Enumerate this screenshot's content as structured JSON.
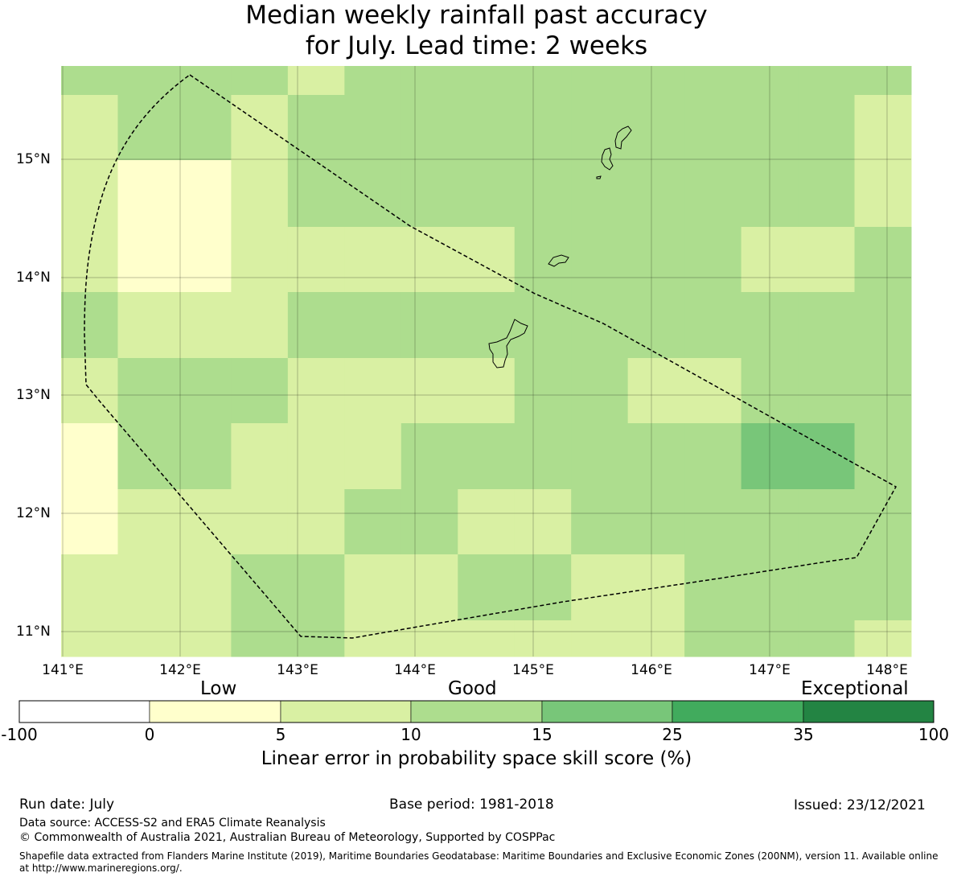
{
  "title": {
    "line1": "Median weekly rainfall past accuracy",
    "line2": "for July. Lead time: 2 weeks"
  },
  "map": {
    "lon_labels": [
      "141°E",
      "142°E",
      "143°E",
      "144°E",
      "145°E",
      "146°E",
      "147°E",
      "148°E"
    ],
    "lat_labels": [
      "15°N",
      "14°N",
      "13°N",
      "12°N",
      "11°N"
    ],
    "grid_category_rows_top_to_bottom": [
      [
        2,
        2,
        2,
        2,
        1,
        2,
        2,
        2,
        2,
        2,
        2,
        2,
        2,
        2,
        2
      ],
      [
        1,
        2,
        2,
        1,
        2,
        2,
        2,
        2,
        2,
        2,
        2,
        2,
        2,
        2,
        1
      ],
      [
        1,
        0,
        0,
        1,
        2,
        2,
        2,
        2,
        2,
        2,
        2,
        2,
        2,
        2,
        1
      ],
      [
        1,
        0,
        0,
        1,
        1,
        1,
        1,
        1,
        2,
        2,
        2,
        2,
        1,
        1,
        2
      ],
      [
        2,
        1,
        1,
        1,
        2,
        2,
        2,
        2,
        2,
        2,
        2,
        2,
        2,
        2,
        2
      ],
      [
        1,
        2,
        2,
        2,
        1,
        1,
        1,
        1,
        2,
        2,
        1,
        1,
        2,
        2,
        2
      ],
      [
        0,
        2,
        2,
        1,
        1,
        1,
        2,
        2,
        2,
        2,
        2,
        2,
        3,
        3,
        2
      ],
      [
        0,
        1,
        1,
        1,
        1,
        2,
        2,
        1,
        1,
        2,
        2,
        2,
        2,
        2,
        2
      ],
      [
        1,
        1,
        1,
        2,
        2,
        1,
        1,
        2,
        2,
        1,
        1,
        2,
        2,
        2,
        2
      ],
      [
        1,
        1,
        1,
        2,
        2,
        1,
        1,
        1,
        1,
        1,
        1,
        2,
        2,
        2,
        1
      ]
    ],
    "category_colors": [
      "#ffffcc",
      "#d9f0a3",
      "#addd8e",
      "#78c679",
      "#41ab5d",
      "#238443"
    ]
  },
  "legend": {
    "categories": [
      "Low",
      "Good",
      "Exceptional"
    ],
    "ticks": [
      "-100",
      "0",
      "5",
      "10",
      "15",
      "25",
      "35",
      "100"
    ],
    "colors": [
      "#ffffff",
      "#ffffcc",
      "#d9f0a3",
      "#addd8e",
      "#78c679",
      "#41ab5d",
      "#238443"
    ],
    "title": "Linear error in probability space skill score (%)"
  },
  "footer": {
    "run_date": "Run date: July",
    "base_period": "Base period: 1981-2018",
    "issued": "Issued: 23/12/2021",
    "data_source": "Data source: ACCESS-S2 and ERA5 Climate Reanalysis",
    "copyright": "© Commonwealth of Australia 2021, Australian Bureau of Meteorology, Supported by COSPPac",
    "shapefile_line1": "Shapefile data extracted from Flanders Marine Institute (2019), Maritime Boundaries Geodatabase: Maritime Boundaries and Exclusive Economic Zones (200NM), version 11. Available online",
    "shapefile_line2": "at http://www.marineregions.org/."
  }
}
